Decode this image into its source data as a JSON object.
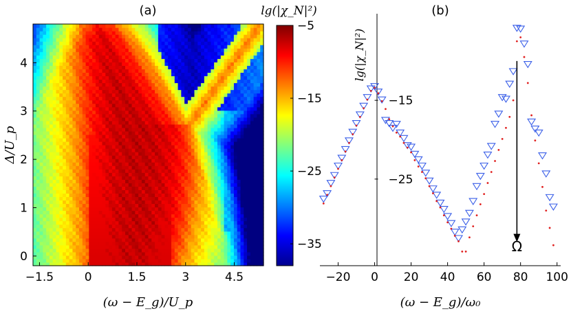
{
  "chart_data": [
    {
      "type": "heatmap",
      "panel_label": "(a)",
      "xlabel": "(ω − E_g)/U_p",
      "ylabel": "Δ/U_p",
      "xlim": [
        -1.7,
        5.4
      ],
      "ylim": [
        -0.2,
        4.8
      ],
      "xticks": [
        -1.5,
        0,
        1.5,
        3,
        4.5
      ],
      "xtick_labels": [
        "−1.5",
        "0",
        "1.5",
        "3",
        "4.5"
      ],
      "yticks": [
        0,
        1,
        2,
        3,
        4
      ],
      "ytick_labels": [
        "0",
        "1",
        "2",
        "3",
        "4"
      ],
      "colorbar": {
        "label": "lg(|χ_N|²)",
        "range": [
          -38,
          -5
        ],
        "ticks": [
          -5,
          -15,
          -25,
          -35
        ],
        "tick_labels": [
          "−5",
          "−15",
          "−25",
          "−35"
        ],
        "colormap": "jet"
      },
      "notes": "hot ridge along line from (3.1, 2.7) to (5.3, 4.8); V-shaped cold region above Δ≈3"
    },
    {
      "type": "scatter",
      "panel_label": "(b)",
      "xlabel": "(ω − E_g)/ω₀",
      "ylabel": "lg(|χ_N|²)",
      "xlim": [
        -30,
        102
      ],
      "ylim": [
        -36,
        -4
      ],
      "xticks": [
        -20,
        0,
        20,
        40,
        60,
        80,
        100
      ],
      "xtick_labels": [
        "−20",
        "0",
        "20",
        "40",
        "60",
        "80",
        "100"
      ],
      "yticks": [
        -15,
        -25
      ],
      "ytick_labels": [
        "−15",
        "−25"
      ],
      "annotation": "Ω",
      "arrow": {
        "x": 78,
        "from_y": -10,
        "to_y": -33
      },
      "series": [
        {
          "marker": "triangle-down",
          "color": "#3a5fe8",
          "x": [
            -28,
            -26,
            -24,
            -22,
            -20,
            -18,
            -16,
            -14,
            -12,
            -10,
            -8,
            -6,
            -4,
            -2,
            0,
            2,
            4,
            6,
            8,
            10,
            12,
            14,
            16,
            18,
            20,
            22,
            24,
            26,
            28,
            30,
            32,
            34,
            36,
            38,
            40,
            42,
            44,
            46,
            48,
            50,
            52,
            54,
            56,
            58,
            60,
            62,
            64,
            66,
            68,
            70,
            72,
            74,
            76,
            78,
            80,
            82,
            84,
            86,
            88,
            90,
            92,
            94,
            96,
            98
          ],
          "y": [
            -27.5,
            -26.8,
            -25.5,
            -24.5,
            -23.3,
            -22.3,
            -21.2,
            -20.1,
            -19.0,
            -17.9,
            -16.8,
            -15.7,
            -14.6,
            -13.5,
            -13.2,
            -13.9,
            -14.9,
            -17.5,
            -17.9,
            -18.5,
            -18.0,
            -19.1,
            -19.8,
            -20.7,
            -20.9,
            -21.8,
            -22.5,
            -23.3,
            -24.2,
            -25.2,
            -26.2,
            -27.0,
            -28.0,
            -28.8,
            -29.7,
            -30.6,
            -31.7,
            -32.5,
            -31.4,
            -30.4,
            -29.3,
            -27.8,
            -25.9,
            -24.6,
            -23.3,
            -21.9,
            -20.8,
            -18.0,
            -16.7,
            -14.6,
            -14.8,
            -12.9,
            -11.3,
            -5.8,
            -5.9,
            -7.8,
            -10.4,
            -17.7,
            -18.6,
            -19.1,
            -22.0,
            -24.3,
            -27.3,
            -28.5
          ]
        },
        {
          "marker": "dot",
          "color": "#e0201f",
          "x": [
            -28,
            -26,
            -24,
            -22,
            -20,
            -18,
            -16,
            -14,
            -12,
            -10,
            -8,
            -6,
            -4,
            -2,
            0,
            2,
            4,
            6,
            8,
            10,
            12,
            14,
            16,
            18,
            20,
            22,
            24,
            26,
            28,
            30,
            32,
            34,
            36,
            38,
            40,
            42,
            44,
            46,
            48,
            50,
            52,
            54,
            56,
            58,
            60,
            62,
            64,
            66,
            68,
            70,
            72,
            74,
            76,
            78,
            80,
            82,
            84,
            86,
            88,
            90,
            92,
            94,
            96,
            98
          ],
          "y": [
            -28.1,
            -27.0,
            -25.9,
            -24.8,
            -23.7,
            -22.6,
            -21.5,
            -20.4,
            -19.3,
            -18.2,
            -17.1,
            -16.0,
            -14.9,
            -13.8,
            -13.4,
            -14.1,
            -15.1,
            -16.1,
            -17.4,
            -18.3,
            -19.1,
            -19.6,
            -20.4,
            -21.0,
            -21.6,
            -22.6,
            -23.4,
            -24.1,
            -24.9,
            -25.9,
            -26.8,
            -27.8,
            -28.6,
            -29.6,
            -30.5,
            -31.3,
            -32.2,
            -32.9,
            -34.2,
            -34.2,
            -32.4,
            -31.0,
            -29.6,
            -28.2,
            -26.9,
            -25.5,
            -24.1,
            -22.7,
            -21.3,
            -19.9,
            -18.5,
            -17.1,
            -15.0,
            -7.5,
            -7.0,
            -9.5,
            -12.8,
            -16.9,
            -20.1,
            -23.0,
            -26.0,
            -29.0,
            -31.2,
            -33.4
          ]
        }
      ]
    }
  ]
}
